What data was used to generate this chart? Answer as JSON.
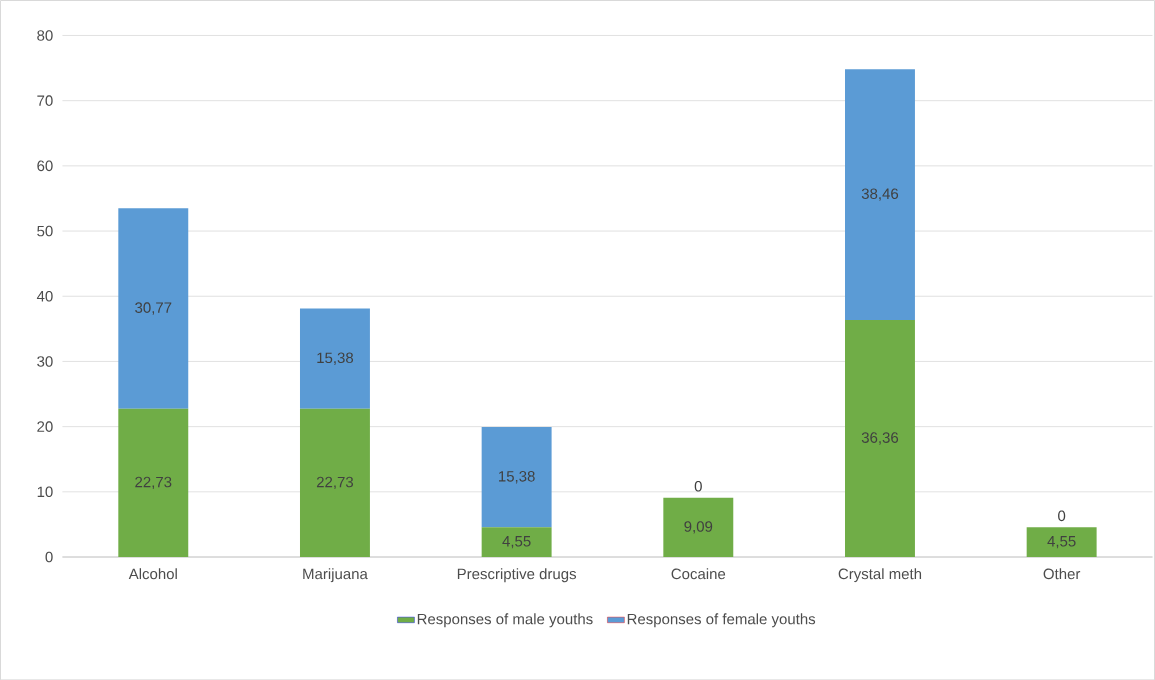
{
  "chart_data": {
    "type": "bar",
    "stacked": true,
    "categories": [
      "Alcohol",
      "Marijuana",
      "Prescriptive drugs",
      "Cocaine",
      "Crystal meth",
      "Other"
    ],
    "series": [
      {
        "name": "Responses of male youths",
        "color": "#70ad47",
        "values": [
          22.73,
          22.73,
          4.55,
          9.09,
          36.36,
          4.55
        ],
        "value_labels": [
          "22,73",
          "22,73",
          "4,55",
          "9,09",
          "36,36",
          "4,55"
        ]
      },
      {
        "name": "Responses of female youths",
        "color": "#5b9bd5",
        "values": [
          30.77,
          15.38,
          15.38,
          0,
          38.46,
          0
        ],
        "value_labels": [
          "30,77",
          "15,38",
          "15,38",
          "0",
          "38,46",
          "0"
        ]
      }
    ],
    "ylim": [
      0,
      80
    ],
    "yticks": [
      0,
      10,
      20,
      30,
      40,
      50,
      60,
      70,
      80
    ],
    "grid": "y",
    "legend": "bottom"
  }
}
